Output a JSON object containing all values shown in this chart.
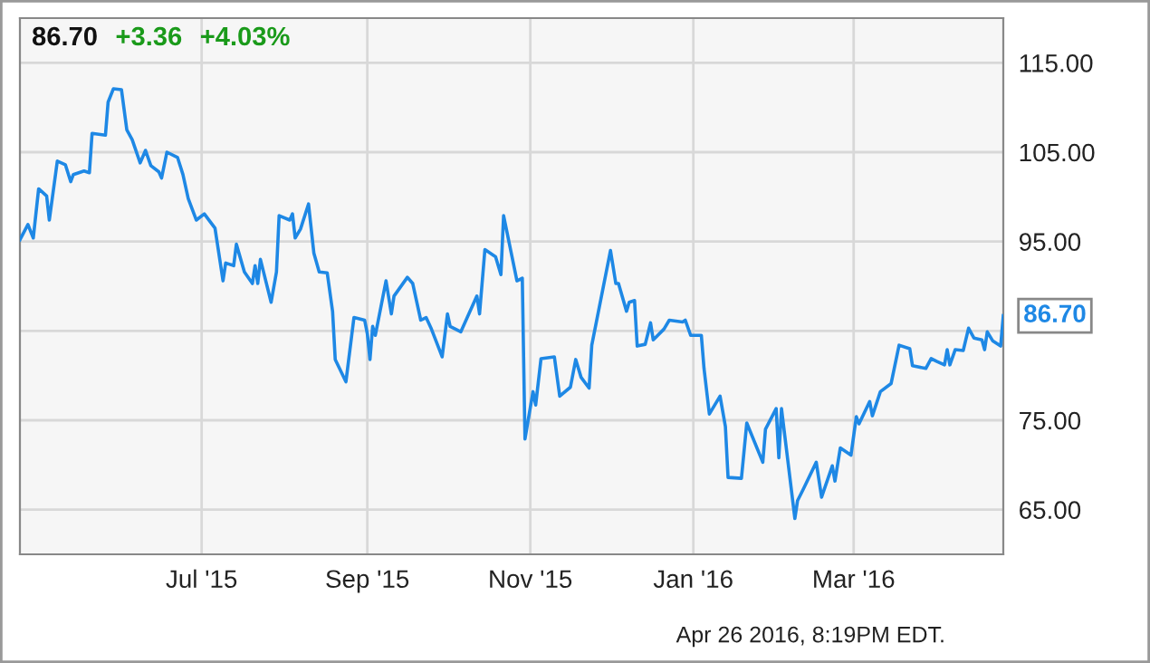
{
  "chart_data": {
    "type": "line",
    "x": [
      "2015-04-24",
      "2015-04-27",
      "2015-04-29",
      "2015-05-01",
      "2015-05-04",
      "2015-05-05",
      "2015-05-08",
      "2015-05-11",
      "2015-05-13",
      "2015-05-14",
      "2015-05-18",
      "2015-05-20",
      "2015-05-21",
      "2015-05-26",
      "2015-05-27",
      "2015-05-29",
      "2015-06-01",
      "2015-06-03",
      "2015-06-05",
      "2015-06-08",
      "2015-06-10",
      "2015-06-12",
      "2015-06-15",
      "2015-06-16",
      "2015-06-18",
      "2015-06-22",
      "2015-06-24",
      "2015-06-26",
      "2015-06-29",
      "2015-07-02",
      "2015-07-06",
      "2015-07-09",
      "2015-07-10",
      "2015-07-13",
      "2015-07-14",
      "2015-07-17",
      "2015-07-20",
      "2015-07-21",
      "2015-07-22",
      "2015-07-23",
      "2015-07-27",
      "2015-07-29",
      "2015-07-30",
      "2015-08-03",
      "2015-08-04",
      "2015-08-05",
      "2015-08-07",
      "2015-08-10",
      "2015-08-12",
      "2015-08-14",
      "2015-08-17",
      "2015-08-19",
      "2015-08-20",
      "2015-08-24",
      "2015-08-27",
      "2015-08-31",
      "2015-09-01",
      "2015-09-02",
      "2015-09-03",
      "2015-09-04",
      "2015-09-08",
      "2015-09-10",
      "2015-09-11",
      "2015-09-16",
      "2015-09-18",
      "2015-09-21",
      "2015-09-23",
      "2015-09-25",
      "2015-09-29",
      "2015-10-01",
      "2015-10-02",
      "2015-10-06",
      "2015-10-09",
      "2015-10-12",
      "2015-10-13",
      "2015-10-15",
      "2015-10-19",
      "2015-10-21",
      "2015-10-22",
      "2015-10-27",
      "2015-10-29",
      "2015-10-30",
      "2015-11-02",
      "2015-11-03",
      "2015-11-05",
      "2015-11-10",
      "2015-11-12",
      "2015-11-16",
      "2015-11-18",
      "2015-11-20",
      "2015-11-23",
      "2015-11-24",
      "2015-12-01",
      "2015-12-03",
      "2015-12-04",
      "2015-12-07",
      "2015-12-08",
      "2015-12-10",
      "2015-12-11",
      "2015-12-14",
      "2015-12-16",
      "2015-12-17",
      "2015-12-21",
      "2015-12-23",
      "2015-12-28",
      "2015-12-29",
      "2015-12-31",
      "2016-01-04",
      "2016-01-05",
      "2016-01-07",
      "2016-01-11",
      "2016-01-13",
      "2016-01-14",
      "2016-01-19",
      "2016-01-21",
      "2016-01-27",
      "2016-01-28",
      "2016-02-01",
      "2016-02-02",
      "2016-02-03",
      "2016-02-08",
      "2016-02-09",
      "2016-02-11",
      "2016-02-16",
      "2016-02-18",
      "2016-02-22",
      "2016-02-23",
      "2016-02-25",
      "2016-02-29",
      "2016-03-02",
      "2016-03-03",
      "2016-03-07",
      "2016-03-08",
      "2016-03-11",
      "2016-03-15",
      "2016-03-18",
      "2016-03-22",
      "2016-03-23",
      "2016-03-28",
      "2016-03-30",
      "2016-04-01",
      "2016-04-04",
      "2016-04-05",
      "2016-04-06",
      "2016-04-08",
      "2016-04-11",
      "2016-04-13",
      "2016-04-15",
      "2016-04-18",
      "2016-04-19",
      "2016-04-20",
      "2016-04-22",
      "2016-04-25",
      "2016-04-26"
    ],
    "series": [
      {
        "color": "#1e88e5",
        "values": [
          95.2,
          96.9,
          95.4,
          100.9,
          100.1,
          97.4,
          104.0,
          103.6,
          101.7,
          102.5,
          102.9,
          102.7,
          107.1,
          106.9,
          110.6,
          112.1,
          112.0,
          107.5,
          106.4,
          103.8,
          105.2,
          103.5,
          102.8,
          102.1,
          105.0,
          104.4,
          102.5,
          99.8,
          97.4,
          98.1,
          96.5,
          90.6,
          92.6,
          92.3,
          94.7,
          91.6,
          90.3,
          92.3,
          90.3,
          93.0,
          88.2,
          91.6,
          97.9,
          97.4,
          98.1,
          95.4,
          96.4,
          99.2,
          93.7,
          91.6,
          91.5,
          87.2,
          81.8,
          79.3,
          86.5,
          86.2,
          84.7,
          81.8,
          85.5,
          84.5,
          90.6,
          86.9,
          88.9,
          91.0,
          90.3,
          86.2,
          86.5,
          85.2,
          82.1,
          86.9,
          85.5,
          84.9,
          86.9,
          88.9,
          86.9,
          94.1,
          93.3,
          91.3,
          97.9,
          90.6,
          90.9,
          72.9,
          78.2,
          76.7,
          81.9,
          82.1,
          77.7,
          78.7,
          81.8,
          79.8,
          78.6,
          83.4,
          94.0,
          90.3,
          90.3,
          87.2,
          88.2,
          88.4,
          83.3,
          83.5,
          85.9,
          84.0,
          85.2,
          86.2,
          86.0,
          86.2,
          84.5,
          84.5,
          80.8,
          75.7,
          77.7,
          74.3,
          68.6,
          68.5,
          74.7,
          70.3,
          74.0,
          76.3,
          70.8,
          76.3,
          64.0,
          66.0,
          67.2,
          70.3,
          66.4,
          69.9,
          68.2,
          71.9,
          71.1,
          75.4,
          74.6,
          77.1,
          75.5,
          78.2,
          79.1,
          83.4,
          83.0,
          81.1,
          80.8,
          81.9,
          81.6,
          81.2,
          82.9,
          81.2,
          82.9,
          82.8,
          85.3,
          84.2,
          84.0,
          82.9,
          84.9,
          83.9,
          83.3,
          86.7
        ]
      }
    ],
    "xlim": [
      "2015-04-24",
      "2016-04-26"
    ],
    "xticks": [
      {
        "value": "2015-07-01",
        "label": "Jul '15"
      },
      {
        "value": "2015-09-01",
        "label": "Sep '15"
      },
      {
        "value": "2015-11-01",
        "label": "Nov '15"
      },
      {
        "value": "2016-01-01",
        "label": "Jan '16"
      },
      {
        "value": "2016-03-01",
        "label": "Mar '16"
      }
    ],
    "ylim": [
      60,
      120
    ],
    "yticks": [
      {
        "value": 65,
        "label": "65.00"
      },
      {
        "value": 75,
        "label": "75.00"
      },
      {
        "value": 85,
        "label": null
      },
      {
        "value": 95,
        "label": "95.00"
      },
      {
        "value": 105,
        "label": "105.00"
      },
      {
        "value": 115,
        "label": "115.00"
      }
    ],
    "grid": true,
    "marker": "none",
    "line_style": "solid",
    "annotations": [
      "86.70",
      "+3.36",
      "+4.03%",
      "Apr 26 2016, 8:19PM EDT.",
      {
        "text": "86.70",
        "x": "2016-04-26",
        "y": 86.7
      }
    ]
  }
}
